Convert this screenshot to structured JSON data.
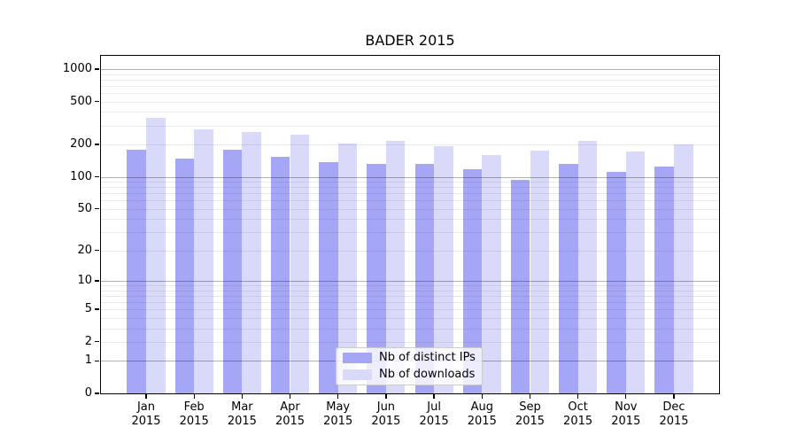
{
  "title": "BADER 2015",
  "colors": {
    "bar_distinct_ips": "#a6a6f7",
    "bar_downloads": "#d9d9fa",
    "grid_major": "rgba(0,0,0,0.30)",
    "grid_minor": "rgba(0,0,0,0.08)",
    "axis": "#000000",
    "legend_border": "#cccccc"
  },
  "legend": {
    "items": [
      {
        "label": "Nb of distinct IPs",
        "color": "#a6a6f7"
      },
      {
        "label": "Nb of downloads",
        "color": "#d9d9fa"
      }
    ]
  },
  "chart_data": {
    "type": "bar",
    "title": "BADER 2015",
    "categories": [
      "Jan 2015",
      "Feb 2015",
      "Mar 2015",
      "Apr 2015",
      "May 2015",
      "Jun 2015",
      "Jul 2015",
      "Aug 2015",
      "Sep 2015",
      "Oct 2015",
      "Nov 2015",
      "Dec 2015"
    ],
    "series": [
      {
        "name": "Nb of distinct IPs",
        "color": "#a6a6f7",
        "values": [
          178,
          147,
          178,
          154,
          136,
          131,
          131,
          118,
          93,
          131,
          111,
          124
        ]
      },
      {
        "name": "Nb of downloads",
        "color": "#d9d9fa",
        "values": [
          353,
          276,
          262,
          245,
          204,
          215,
          194,
          159,
          174,
          216,
          173,
          199
        ]
      }
    ],
    "xlabel": "",
    "ylabel": "",
    "yscale": "log1p",
    "yticks": [
      0,
      1,
      2,
      5,
      10,
      20,
      50,
      100,
      200,
      500,
      1000
    ],
    "ylim": [
      0,
      1350
    ],
    "grid": true,
    "legend_position": "lower center"
  }
}
